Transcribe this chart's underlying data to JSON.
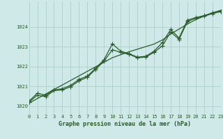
{
  "xlabel": "Graphe pression niveau de la mer (hPa)",
  "bg_color": "#cfe8e8",
  "grid_color": "#b0d4cc",
  "line_color": "#2a5c2a",
  "x_min": 0,
  "x_max": 23,
  "y_min": 1019.6,
  "y_max": 1025.3,
  "yticks": [
    1020,
    1021,
    1022,
    1023,
    1024
  ],
  "xticks": [
    0,
    1,
    2,
    3,
    4,
    5,
    6,
    7,
    8,
    9,
    10,
    11,
    12,
    13,
    14,
    15,
    16,
    17,
    18,
    19,
    20,
    21,
    22,
    23
  ],
  "series_smooth": [
    1020.15,
    1020.38,
    1020.61,
    1020.84,
    1021.07,
    1021.3,
    1021.53,
    1021.76,
    1021.99,
    1022.22,
    1022.45,
    1022.6,
    1022.75,
    1022.88,
    1023.01,
    1023.14,
    1023.35,
    1023.65,
    1023.9,
    1024.15,
    1024.38,
    1024.55,
    1024.72,
    1024.85
  ],
  "series_spike": [
    1020.25,
    1020.65,
    1020.55,
    1020.82,
    1020.88,
    1021.05,
    1021.35,
    1021.52,
    1021.92,
    1022.35,
    1023.15,
    1022.78,
    1022.65,
    1022.48,
    1022.52,
    1022.78,
    1023.22,
    1023.88,
    1023.45,
    1024.35,
    1024.48,
    1024.58,
    1024.72,
    1024.82
  ],
  "series_mid": [
    1020.2,
    1020.55,
    1020.48,
    1020.78,
    1020.82,
    1020.98,
    1021.28,
    1021.46,
    1021.86,
    1022.28,
    1022.85,
    1022.72,
    1022.62,
    1022.45,
    1022.48,
    1022.72,
    1023.05,
    1023.75,
    1023.38,
    1024.28,
    1024.45,
    1024.55,
    1024.68,
    1024.78
  ]
}
